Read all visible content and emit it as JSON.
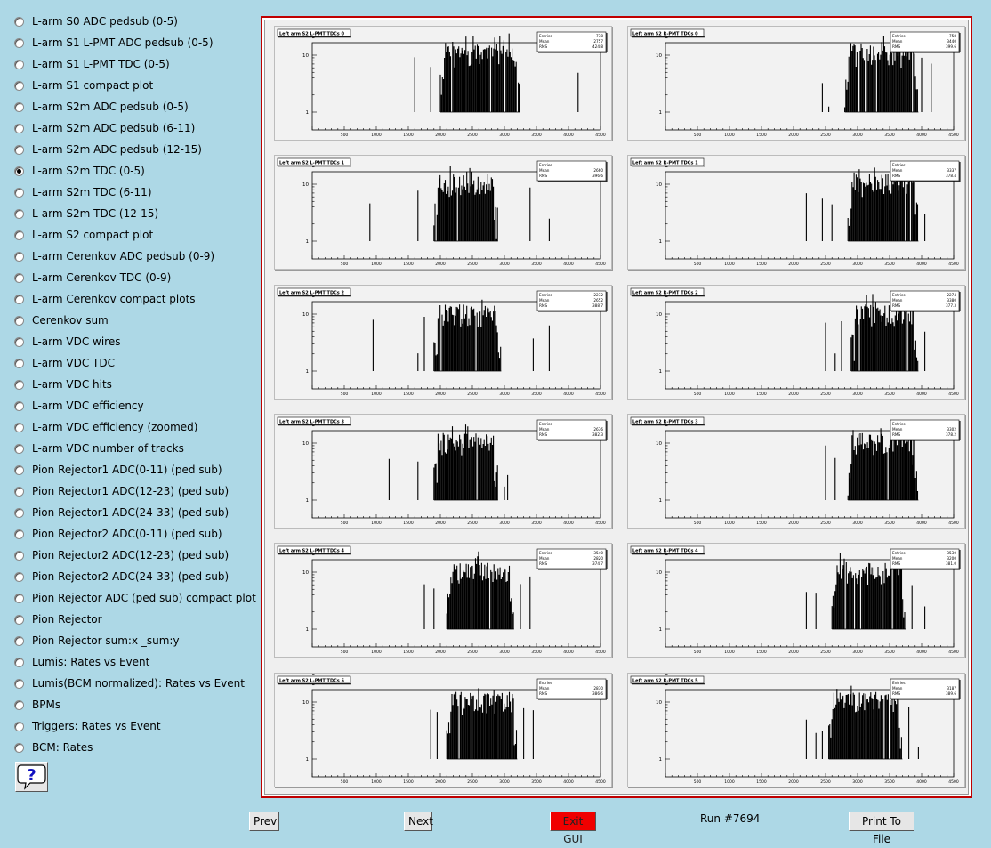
{
  "menu": {
    "selected_index": 7,
    "items": [
      "L-arm S0 ADC pedsub (0-5)",
      "L-arm S1 L-PMT ADC pedsub (0-5)",
      "L-arm S1 L-PMT TDC (0-5)",
      "L-arm S1 compact plot",
      "L-arm S2m ADC pedsub (0-5)",
      "L-arm S2m ADC pedsub (6-11)",
      "L-arm S2m ADC pedsub (12-15)",
      "L-arm S2m TDC (0-5)",
      "L-arm S2m TDC (6-11)",
      "L-arm S2m TDC (12-15)",
      "L-arm S2 compact plot",
      "L-arm Cerenkov ADC pedsub (0-9)",
      "L-arm Cerenkov TDC (0-9)",
      "L-arm Cerenkov compact plots",
      "Cerenkov sum",
      "L-arm VDC wires",
      "L-arm VDC TDC",
      "L-arm VDC hits",
      "L-arm VDC efficiency",
      "L-arm VDC efficiency (zoomed)",
      "L-arm VDC number of tracks",
      "Pion Rejector1 ADC(0-11) (ped sub)",
      "Pion Rejector1 ADC(12-23) (ped sub)",
      "Pion Rejector1 ADC(24-33) (ped sub)",
      "Pion Rejector2 ADC(0-11) (ped sub)",
      "Pion Rejector2 ADC(12-23) (ped sub)",
      "Pion Rejector2 ADC(24-33) (ped sub)",
      "Pion Rejector ADC (ped sub) compact plot",
      "Pion Rejector",
      "Pion Rejector sum:x _sum:y",
      "Lumis: Rates vs Event",
      "Lumis(BCM normalized): Rates vs Event",
      "BPMs",
      "Triggers: Rates vs Event",
      "BCM: Rates"
    ]
  },
  "help": {
    "icon": "question-icon",
    "label": "?"
  },
  "buttons": {
    "prev": "Prev",
    "next": "Next",
    "exit": "Exit GUI",
    "print": "Print To File"
  },
  "run": {
    "label": "Run #7694"
  },
  "colors": {
    "background": "#add8e6",
    "frame": "#c00000",
    "exit": "#f00000"
  },
  "axis": {
    "x_ticks": [
      "500",
      "1000",
      "1500",
      "2000",
      "2500",
      "3000",
      "3500",
      "4000",
      "4500"
    ],
    "y_ticks": [
      "10",
      "1"
    ],
    "x_range": [
      0,
      4500
    ],
    "y_scale": "log"
  },
  "stat_labels": [
    "Entries",
    "Mean",
    "RMS"
  ],
  "chart_data": [
    {
      "type": "histogram",
      "title": "Left arm S2 L-PMT TDCs 0",
      "stats": [
        "778",
        "2757",
        "424.8"
      ],
      "range": [
        2000,
        3250
      ],
      "left_spikes": [
        1600,
        1850
      ],
      "right_spikes": [
        4150
      ]
    },
    {
      "type": "histogram",
      "title": "Left arm S2 R-PMT TDCs 0",
      "stats": [
        "758",
        "3440",
        "399.6"
      ],
      "range": [
        2800,
        3950
      ],
      "left_spikes": [
        2450,
        2550
      ],
      "right_spikes": [
        4000,
        4150
      ]
    },
    {
      "type": "histogram",
      "title": "Left arm S2 L-PMT TDCs 1",
      "stats": [
        "",
        "2660",
        "396.6"
      ],
      "range": [
        1900,
        2900
      ],
      "left_spikes": [
        1650,
        900
      ],
      "right_spikes": [
        3400,
        3700
      ]
    },
    {
      "type": "histogram",
      "title": "Left arm S2 R-PMT TDCs 1",
      "stats": [
        "",
        "3337",
        "378.4"
      ],
      "range": [
        2850,
        3950
      ],
      "left_spikes": [
        2200,
        2450,
        2600
      ],
      "right_spikes": [
        4050
      ]
    },
    {
      "type": "histogram",
      "title": "Left arm S2 L-PMT TDCs 2",
      "stats": [
        "2272",
        "2652",
        "388.7"
      ],
      "range": [
        1900,
        2950
      ],
      "left_spikes": [
        1650,
        1750,
        950
      ],
      "right_spikes": [
        3450,
        3700
      ]
    },
    {
      "type": "histogram",
      "title": "Left arm S2 R-PMT TDCs 2",
      "stats": [
        "2274",
        "3380",
        "377.3"
      ],
      "range": [
        2900,
        3950
      ],
      "left_spikes": [
        2500,
        2650,
        2750
      ],
      "right_spikes": [
        4050
      ]
    },
    {
      "type": "histogram",
      "title": "Left arm S2 L-PMT TDCs 3",
      "stats": [
        "",
        "2676",
        "382.3"
      ],
      "range": [
        1900,
        2900
      ],
      "left_spikes": [
        1650,
        1200
      ],
      "right_spikes": [
        3000,
        3050
      ]
    },
    {
      "type": "histogram",
      "title": "Left arm S2 R-PMT TDCs 3",
      "stats": [
        "",
        "3302",
        "378.2"
      ],
      "range": [
        2850,
        3950
      ],
      "left_spikes": [
        2500,
        2650
      ],
      "right_spikes": [
        3750,
        3850
      ]
    },
    {
      "type": "histogram",
      "title": "Left arm S2 L-PMT TDCs 4",
      "stats": [
        "3540",
        "2820",
        "374.7"
      ],
      "range": [
        2100,
        3150
      ],
      "left_spikes": [
        1750,
        1900
      ],
      "right_spikes": [
        3250,
        3400
      ]
    },
    {
      "type": "histogram",
      "title": "Left arm S2 R-PMT TDCs 4",
      "stats": [
        "3530",
        "3200",
        "381.0"
      ],
      "range": [
        2600,
        3750
      ],
      "left_spikes": [
        2200,
        2350
      ],
      "right_spikes": [
        3850,
        4050
      ]
    },
    {
      "type": "histogram",
      "title": "Left arm S2 L-PMT TDCs 5",
      "stats": [
        "",
        "2870",
        "386.6"
      ],
      "range": [
        2100,
        3200
      ],
      "left_spikes": [
        1850,
        1950
      ],
      "right_spikes": [
        3300,
        3450
      ]
    },
    {
      "type": "histogram",
      "title": "Left arm S2 R-PMT TDCs 5",
      "stats": [
        "",
        "3187",
        "389.6"
      ],
      "range": [
        2550,
        3700
      ],
      "left_spikes": [
        2200,
        2350,
        2450
      ],
      "right_spikes": [
        3800,
        3950
      ]
    }
  ]
}
